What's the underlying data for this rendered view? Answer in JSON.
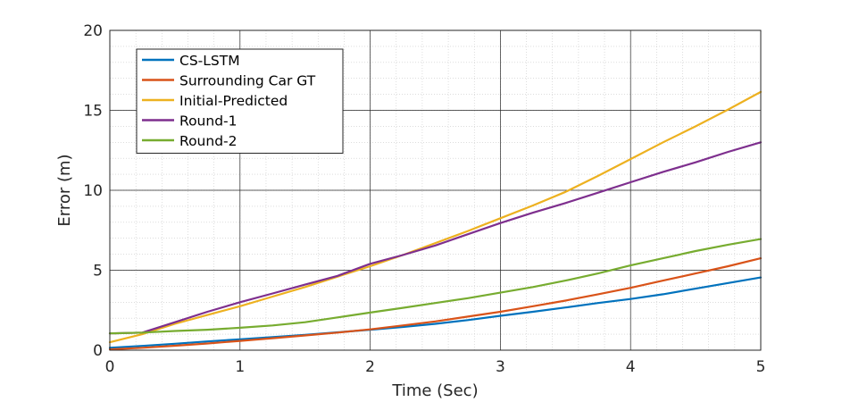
{
  "chart_data": {
    "type": "line",
    "xlabel": "Time (Sec)",
    "ylabel": "Error (m)",
    "xlim": [
      0,
      5
    ],
    "ylim": [
      0,
      20
    ],
    "x_ticks": [
      0,
      1,
      2,
      3,
      4,
      5
    ],
    "y_ticks": [
      0,
      5,
      10,
      15,
      20
    ],
    "x_tick_labels": [
      "0",
      "1",
      "2",
      "3",
      "4",
      "5"
    ],
    "y_tick_labels": [
      "0",
      "5",
      "10",
      "15",
      "20"
    ],
    "grid": true,
    "minor_grid": true,
    "legend_position": "top-left",
    "x": [
      0,
      0.25,
      0.5,
      0.75,
      1,
      1.25,
      1.5,
      1.75,
      2,
      2.25,
      2.5,
      2.75,
      3,
      3.25,
      3.5,
      3.75,
      4,
      4.25,
      4.5,
      4.75,
      5
    ],
    "series": [
      {
        "name": "CS-LSTM",
        "color": "#0072BD",
        "values": [
          0.15,
          0.27,
          0.4,
          0.55,
          0.68,
          0.82,
          0.96,
          1.12,
          1.28,
          1.45,
          1.65,
          1.88,
          2.15,
          2.4,
          2.67,
          2.95,
          3.2,
          3.5,
          3.85,
          4.2,
          4.55
        ]
      },
      {
        "name": "Surrounding Car GT",
        "color": "#D95319",
        "values": [
          0.05,
          0.15,
          0.28,
          0.42,
          0.58,
          0.75,
          0.92,
          1.1,
          1.3,
          1.55,
          1.8,
          2.1,
          2.4,
          2.75,
          3.1,
          3.5,
          3.9,
          4.35,
          4.8,
          5.25,
          5.75
        ]
      },
      {
        "name": "Initial-Predicted",
        "color": "#EDB120",
        "values": [
          0.5,
          1.0,
          1.65,
          2.2,
          2.75,
          3.35,
          3.95,
          4.6,
          5.25,
          5.95,
          6.7,
          7.45,
          8.25,
          9.05,
          9.9,
          10.9,
          11.95,
          13.0,
          14.0,
          15.05,
          16.15
        ]
      },
      {
        "name": "Round-1",
        "color": "#7E2F8E",
        "values": [
          1.05,
          1.1,
          1.75,
          2.4,
          3.0,
          3.55,
          4.1,
          4.65,
          5.4,
          5.95,
          6.55,
          7.25,
          7.95,
          8.6,
          9.2,
          9.85,
          10.5,
          11.15,
          11.75,
          12.4,
          13.0
        ]
      },
      {
        "name": "Round-2",
        "color": "#77AC30",
        "values": [
          1.05,
          1.1,
          1.2,
          1.28,
          1.4,
          1.55,
          1.75,
          2.05,
          2.35,
          2.65,
          2.95,
          3.25,
          3.6,
          3.95,
          4.35,
          4.8,
          5.3,
          5.75,
          6.2,
          6.6,
          6.95
        ]
      }
    ]
  }
}
